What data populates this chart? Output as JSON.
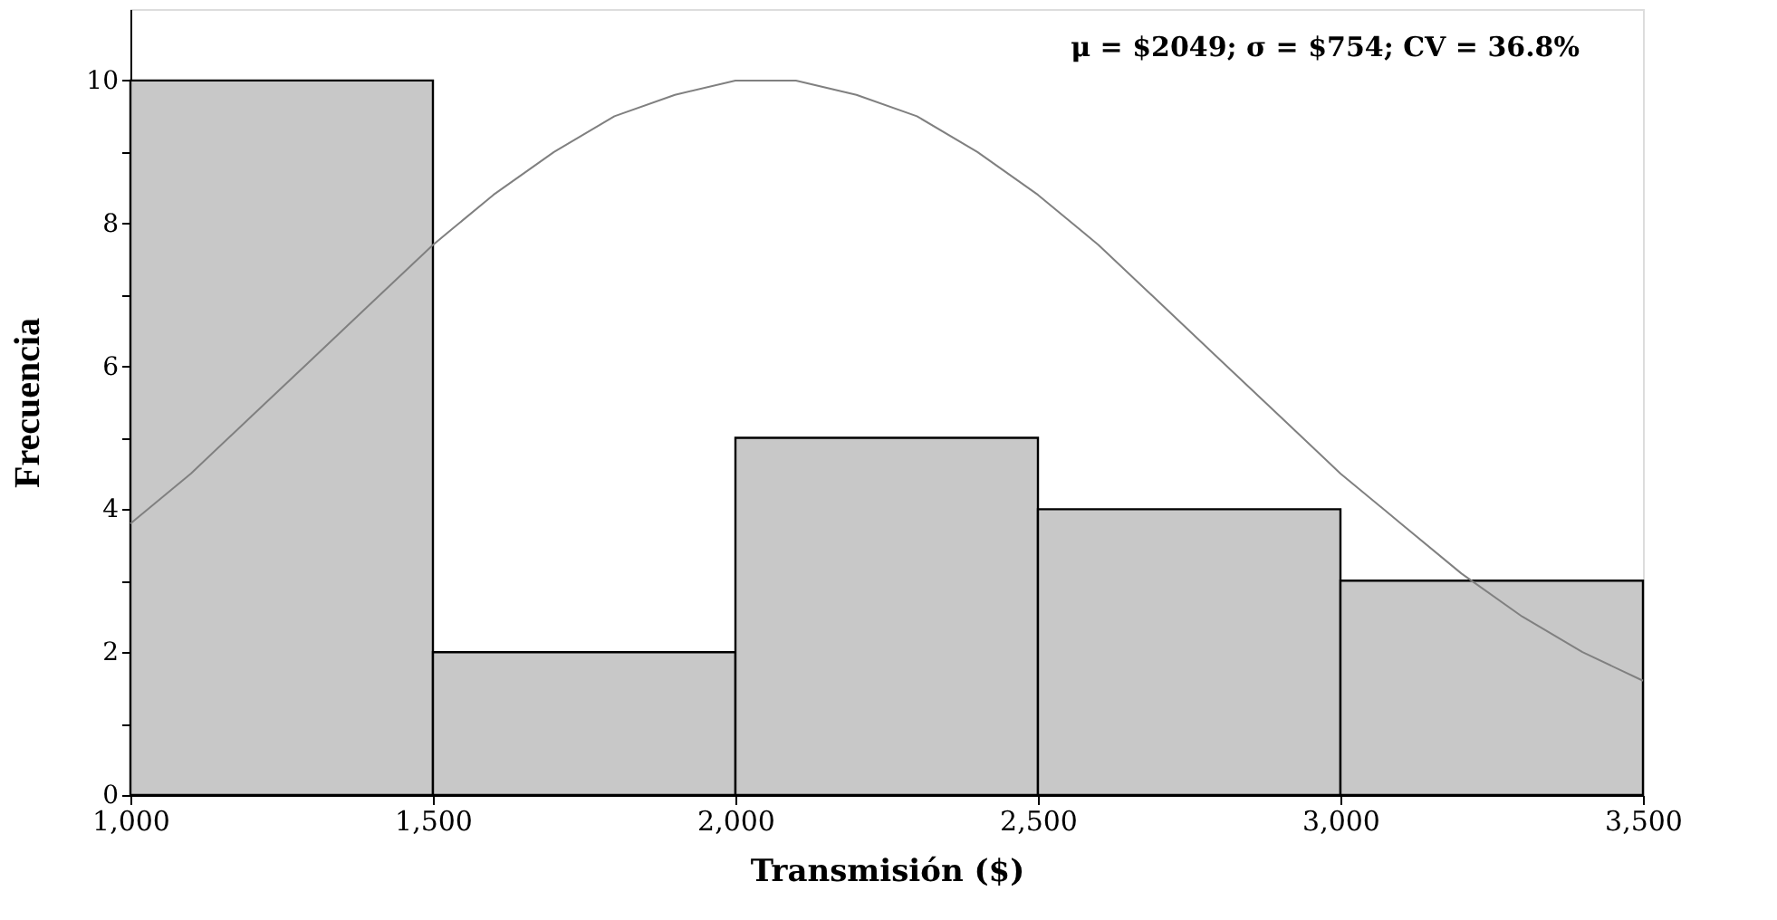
{
  "chart_data": {
    "type": "histogram",
    "xlabel": "Transmisión ($)",
    "ylabel": "Frecuencia",
    "annotations": [
      "μ = $2049; σ = $754; CV = 36.8%"
    ],
    "bins": [
      1000,
      1500,
      2000,
      2500,
      3000,
      3500
    ],
    "values": [
      10,
      2,
      5,
      4,
      3
    ],
    "color": "#c8c8c8",
    "series": [
      {
        "type": "line",
        "color": "#808080",
        "x": [
          1000,
          1100,
          1200,
          1300,
          1400,
          1500,
          1600,
          1700,
          1800,
          1900,
          2000,
          2100,
          2200,
          2300,
          2400,
          2500,
          2600,
          2700,
          2800,
          2900,
          3000,
          3100,
          3200,
          3300,
          3400,
          3500
        ],
        "values": [
          3.8,
          4.5,
          5.3,
          6.1,
          6.9,
          7.7,
          8.4,
          9.0,
          9.5,
          9.8,
          10.0,
          10.0,
          9.8,
          9.5,
          9.0,
          8.4,
          7.7,
          6.9,
          6.1,
          5.3,
          4.5,
          3.8,
          3.1,
          2.5,
          2.0,
          1.6
        ]
      }
    ],
    "xlim": [
      1000,
      3500
    ],
    "xticks": [
      {
        "value": 1000,
        "label": "1,000"
      },
      {
        "value": 1500,
        "label": "1,500"
      },
      {
        "value": 2000,
        "label": "2,000"
      },
      {
        "value": 2500,
        "label": "2,500"
      },
      {
        "value": 3000,
        "label": "3,000"
      },
      {
        "value": 3500,
        "label": "3,500"
      }
    ],
    "ylim": [
      0,
      11
    ],
    "yticks": [
      0,
      {
        "value": 1,
        "label": null
      },
      2,
      {
        "value": 3,
        "label": null
      },
      4,
      {
        "value": 5,
        "label": null
      },
      6,
      {
        "value": 7,
        "label": null
      },
      8,
      {
        "value": 9,
        "label": null
      },
      10
    ],
    "grid": false
  }
}
